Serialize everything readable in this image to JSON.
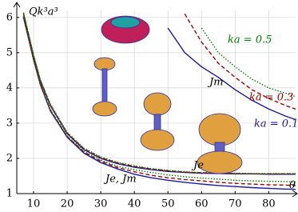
{
  "chart_data": {
    "type": "line",
    "ylabel": "Qk³a³",
    "xlabel": "θ",
    "x": [
      7,
      8,
      10,
      12,
      15,
      20,
      25,
      30,
      35,
      40,
      45,
      50,
      55,
      60,
      65,
      70,
      75,
      80,
      85,
      88
    ],
    "xlim": [
      5,
      88
    ],
    "xticks": [
      10,
      20,
      30,
      40,
      50,
      60,
      70,
      80
    ],
    "ylim": [
      1,
      6.2
    ],
    "yticks": [
      1,
      2,
      3,
      4,
      5,
      6
    ],
    "grid": true,
    "series": [
      {
        "color": "#1a1a9a",
        "style": "solid",
        "values": [
          6.1,
          5.7,
          4.9,
          4.2,
          3.5,
          2.7,
          2.25,
          2.0,
          1.85,
          1.75,
          1.68,
          1.63,
          1.6,
          1.58,
          1.57,
          1.56,
          1.56,
          1.55,
          1.55,
          1.55
        ]
      },
      {
        "color": "#a00000",
        "style": "dashed",
        "values": [
          6.12,
          5.72,
          4.92,
          4.22,
          3.52,
          2.72,
          2.27,
          2.02,
          1.87,
          1.77,
          1.7,
          1.65,
          1.61,
          1.59,
          1.58,
          1.57,
          1.56,
          1.56,
          1.56,
          1.56
        ]
      },
      {
        "color": "#008000",
        "style": "dotted",
        "values": [
          6.14,
          5.74,
          4.94,
          4.24,
          3.54,
          2.74,
          2.29,
          2.04,
          1.89,
          1.79,
          1.71,
          1.66,
          1.62,
          1.6,
          1.59,
          1.58,
          1.57,
          1.57,
          1.57,
          1.57
        ]
      },
      {
        "color": "#1a1a9a",
        "style": "solid",
        "values": [
          6.0,
          5.6,
          4.8,
          4.1,
          3.35,
          2.6,
          2.15,
          1.88,
          1.7,
          1.55,
          1.45,
          1.38,
          1.32,
          1.27,
          1.23,
          1.2,
          1.17,
          1.15,
          1.13,
          1.12
        ]
      },
      {
        "color": "#a00000",
        "style": "dashed",
        "values": [
          6.02,
          5.62,
          4.82,
          4.12,
          3.37,
          2.62,
          2.18,
          1.92,
          1.74,
          1.62,
          1.52,
          1.45,
          1.4,
          1.36,
          1.32,
          1.29,
          1.27,
          1.25,
          1.24,
          1.23
        ]
      },
      {
        "color": "#008000",
        "style": "dotted",
        "values": [
          6.04,
          5.64,
          4.84,
          4.14,
          3.39,
          2.64,
          2.2,
          1.95,
          1.78,
          1.68,
          1.6,
          1.53,
          1.48,
          1.44,
          1.41,
          1.38,
          1.36,
          1.35,
          1.34,
          1.33
        ]
      },
      {
        "color": "#1a1a9a",
        "style": "solid",
        "values": [
          null,
          null,
          null,
          null,
          null,
          null,
          null,
          null,
          null,
          null,
          null,
          5.7,
          5.0,
          4.6,
          4.3,
          3.95,
          3.65,
          3.4,
          3.2,
          3.1
        ]
      },
      {
        "color": "#a00000",
        "style": "dashed",
        "values": [
          null,
          null,
          null,
          null,
          null,
          null,
          null,
          null,
          null,
          null,
          null,
          null,
          6.1,
          5.3,
          4.7,
          4.3,
          3.95,
          3.7,
          3.5,
          3.4
        ]
      },
      {
        "color": "#008000",
        "style": "dotted",
        "values": [
          null,
          null,
          null,
          null,
          null,
          null,
          null,
          null,
          null,
          null,
          null,
          null,
          null,
          5.7,
          5.0,
          4.6,
          4.25,
          4.0,
          3.85,
          3.75
        ]
      }
    ],
    "annotations": [
      "ka = 0.5",
      "ka = 0.3",
      "ka = 0.1",
      "Jm",
      "Je",
      "Je, Jm"
    ]
  }
}
